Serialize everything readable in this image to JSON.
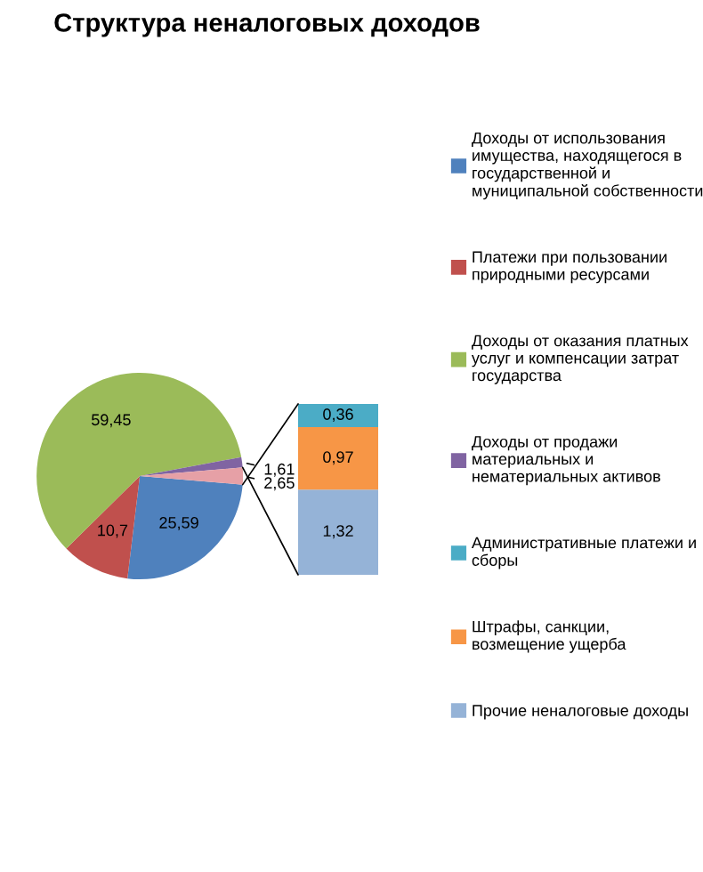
{
  "chart_data": [
    {
      "type": "pie",
      "title": "Структура неналоговых доходов",
      "categories": [
        "Доходы от использования имущества, находящегося в государственной и муниципальной собственности",
        "Платежи при пользовании природными ресурсами",
        "Доходы от оказания платных услуг и компенсации затрат государства",
        "Доходы от продажи материальных и нематериальных активов",
        null
      ],
      "values": [
        25.59,
        10.7,
        59.45,
        1.61,
        2.65
      ],
      "value_labels": [
        "25,59",
        "10,7",
        "59,45",
        "1,61",
        "2,65"
      ],
      "colors": [
        "#4f81bd",
        "#c0504d",
        "#9bbb59",
        "#8064a2",
        "#e6a0a6"
      ],
      "legend": "right"
    },
    {
      "type": "bar",
      "stacked": true,
      "categories": [
        null
      ],
      "series": [
        {
          "name": "Прочие неналоговые доходы",
          "color": "#95b3d7",
          "values": [
            1.32
          ],
          "value_labels": [
            "1,32"
          ]
        },
        {
          "name": "Штрафы, санкции, возмещение ущерба",
          "color": "#f79646",
          "values": [
            0.97
          ],
          "value_labels": [
            "0,97"
          ]
        },
        {
          "name": "Административные платежи и сборы",
          "color": "#4bacc6",
          "values": [
            0.36
          ],
          "value_labels": [
            "0,36"
          ]
        }
      ],
      "legend": "right"
    }
  ]
}
